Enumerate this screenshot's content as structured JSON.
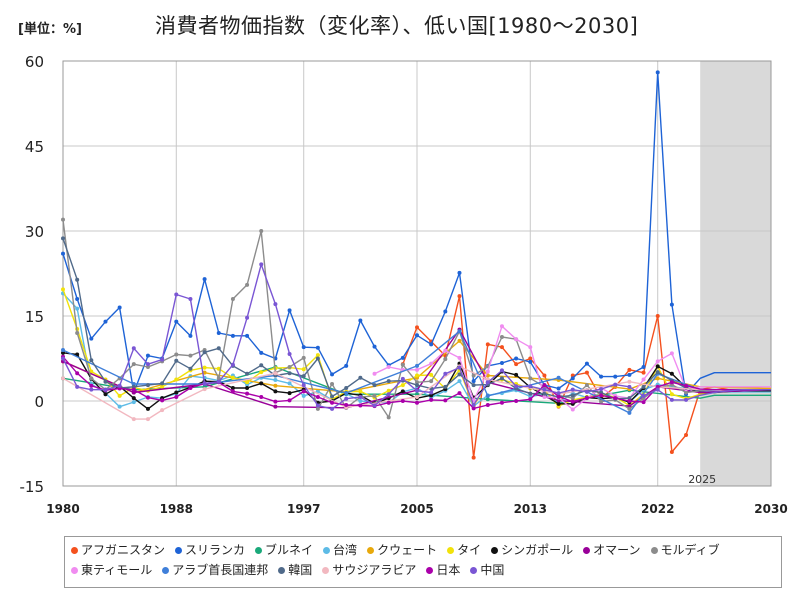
{
  "unit_label": "[単位：%]",
  "title": "消費者物価指数（変化率）、低い国[1980～2030]",
  "chart_data": {
    "type": "line",
    "title": "消費者物価指数（変化率）、低い国[1980～2030]",
    "xlabel": "",
    "ylabel": "",
    "xlim": [
      1980,
      2030
    ],
    "ylim": [
      -15,
      60
    ],
    "y_ticks": [
      -15,
      0,
      15,
      30,
      45,
      60
    ],
    "x_ticks": [
      1980,
      1988,
      1997,
      2005,
      2013,
      2022,
      2030
    ],
    "forecast_start": 2025,
    "forecast_label": "2025",
    "grid": true,
    "legend_position": "bottom",
    "series": [
      {
        "name": "アフガニスタン",
        "color": "#f4511e",
        "x": [
          2004,
          2005,
          2006,
          2007,
          2008,
          2009,
          2010,
          2011,
          2012,
          2013,
          2014,
          2015,
          2016,
          2017,
          2018,
          2019,
          2020,
          2021,
          2022,
          2023,
          2024,
          2025,
          2026,
          2027,
          2028,
          2029,
          2030
        ],
        "values": [
          6.5,
          13,
          10.5,
          8,
          18.5,
          -10,
          10,
          9.5,
          6.5,
          7.5,
          4.5,
          -1,
          4.5,
          5,
          0.5,
          2.5,
          5.5,
          5,
          15,
          -9,
          -6,
          2,
          2.5,
          2,
          2,
          2,
          2
        ]
      },
      {
        "name": "スリランカ",
        "color": "#1e63d6",
        "x": [
          1980,
          1981,
          1982,
          1983,
          1984,
          1985,
          1986,
          1987,
          1988,
          1989,
          1990,
          1991,
          1992,
          1993,
          1994,
          1995,
          1996,
          1997,
          1998,
          1999,
          2000,
          2001,
          2002,
          2003,
          2004,
          2005,
          2006,
          2007,
          2008,
          2009,
          2010,
          2011,
          2012,
          2013,
          2014,
          2015,
          2016,
          2017,
          2018,
          2019,
          2020,
          2021,
          2022,
          2023,
          2024,
          2025,
          2026,
          2027,
          2028,
          2029,
          2030
        ],
        "values": [
          26,
          18,
          11,
          14,
          16.5,
          1.5,
          8,
          7.5,
          14,
          11.5,
          21.5,
          12,
          11.5,
          11.5,
          8.5,
          7.5,
          16,
          9.5,
          9.4,
          4.7,
          6.2,
          14.2,
          9.6,
          6.3,
          7.6,
          11.6,
          10,
          15.8,
          22.6,
          3.5,
          6.2,
          6.7,
          7.5,
          6.9,
          2.8,
          2.2,
          4,
          6.6,
          4.3,
          4.3,
          4.6,
          6,
          58,
          17,
          1.2,
          4,
          5,
          5,
          5,
          5,
          5
        ]
      },
      {
        "name": "ブルネイ",
        "color": "#1aa97a",
        "x": [
          1980,
          1985,
          1990,
          1995,
          2000,
          2005,
          2010,
          2015,
          2020,
          2025,
          2026,
          2027,
          2028,
          2029,
          2030
        ],
        "values": [
          4,
          2,
          2.5,
          6,
          1.2,
          1.2,
          0.3,
          -0.4,
          1.9,
          0.5,
          1,
          1,
          1,
          1,
          1
        ]
      },
      {
        "name": "台湾",
        "color": "#5dbbe6",
        "x": [
          1980,
          1981,
          1982,
          1983,
          1984,
          1985,
          1986,
          1987,
          1988,
          1989,
          1990,
          1991,
          1992,
          1993,
          1994,
          1995,
          1996,
          1997,
          1998,
          1999,
          2000,
          2001,
          2002,
          2003,
          2004,
          2005,
          2006,
          2007,
          2008,
          2009,
          2010,
          2011,
          2012,
          2013,
          2014,
          2015,
          2016,
          2017,
          2018,
          2019,
          2020,
          2021,
          2022,
          2023,
          2024,
          2025,
          2026,
          2027,
          2028,
          2029,
          2030
        ],
        "values": [
          19,
          16.3,
          3,
          1.4,
          -1,
          -0.2,
          0.7,
          0.5,
          1.3,
          4.4,
          4.1,
          3.6,
          4.5,
          2.9,
          4.1,
          3.7,
          3.1,
          0.9,
          1.7,
          0.2,
          1.3,
          0,
          -0.2,
          -0.3,
          1.6,
          2.3,
          0.6,
          1.8,
          3.5,
          -0.9,
          1,
          1.4,
          1.9,
          0.8,
          1.2,
          -0.3,
          1.4,
          0.6,
          1.3,
          0.6,
          -0.2,
          2,
          2.9,
          2.5,
          2.2,
          1.8,
          1.7,
          1.6,
          1.6,
          1.6,
          1.6
        ]
      },
      {
        "name": "クウェート",
        "color": "#e8a90c",
        "x": [
          1980,
          1985,
          1990,
          1995,
          2000,
          2005,
          2008,
          2010,
          2015,
          2020,
          2022,
          2025,
          2030
        ],
        "values": [
          7,
          1.5,
          5,
          2.7,
          1.6,
          4.1,
          10.6,
          4.5,
          3.7,
          2.1,
          4,
          2.5,
          2.2
        ]
      },
      {
        "name": "タイ",
        "color": "#f2e20a",
        "x": [
          1980,
          1981,
          1982,
          1983,
          1984,
          1985,
          1986,
          1987,
          1988,
          1989,
          1990,
          1991,
          1992,
          1993,
          1994,
          1995,
          1996,
          1997,
          1998,
          1999,
          2000,
          2001,
          2002,
          2003,
          2004,
          2005,
          2006,
          2007,
          2008,
          2009,
          2010,
          2011,
          2012,
          2013,
          2014,
          2015,
          2016,
          2017,
          2018,
          2019,
          2020,
          2021,
          2022,
          2023,
          2024,
          2025,
          2026,
          2027,
          2028,
          2029,
          2030
        ],
        "values": [
          19.7,
          12.7,
          5.2,
          3.8,
          0.9,
          2.4,
          1.8,
          2.5,
          3.8,
          5.4,
          5.9,
          5.7,
          4.1,
          3.3,
          5.1,
          5.8,
          5.9,
          5.6,
          8.1,
          0.3,
          1.6,
          1.7,
          0.6,
          1.8,
          2.8,
          4.5,
          4.6,
          2.2,
          5.5,
          -0.9,
          3.3,
          3.8,
          3,
          2.2,
          1.9,
          -0.9,
          0.2,
          0.7,
          1.1,
          0.7,
          -0.8,
          1.2,
          6.1,
          1.2,
          0.4,
          1.2,
          1.5,
          1.8,
          2,
          2,
          2
        ]
      },
      {
        "name": "シンガポール",
        "color": "#111111",
        "x": [
          1980,
          1981,
          1982,
          1983,
          1984,
          1985,
          1986,
          1987,
          1988,
          1989,
          1990,
          1991,
          1992,
          1993,
          1994,
          1995,
          1996,
          1997,
          1998,
          1999,
          2000,
          2001,
          2002,
          2003,
          2004,
          2005,
          2006,
          2007,
          2008,
          2009,
          2010,
          2011,
          2012,
          2013,
          2014,
          2015,
          2016,
          2017,
          2018,
          2019,
          2020,
          2021,
          2022,
          2023,
          2024,
          2025,
          2026,
          2027,
          2028,
          2029,
          2030
        ],
        "values": [
          8.5,
          8.2,
          3.9,
          1.2,
          2.6,
          0.5,
          -1.4,
          0.5,
          1.5,
          2.4,
          3.5,
          3.4,
          2.3,
          2.3,
          3.1,
          1.7,
          1.4,
          2,
          -0.3,
          0,
          1.4,
          1,
          -0.4,
          0.5,
          1.7,
          0.5,
          1,
          2.1,
          6.6,
          0.6,
          2.8,
          5.2,
          4.6,
          2.4,
          1,
          -0.5,
          -0.5,
          0.6,
          0.4,
          0.6,
          -0.2,
          2.3,
          6.1,
          4.8,
          2.4,
          1.5,
          1.5,
          1.7,
          1.8,
          1.8,
          1.8
        ]
      },
      {
        "name": "オマーン",
        "color": "#990099",
        "x": [
          1980,
          1985,
          1990,
          1995,
          2000,
          2005,
          2008,
          2010,
          2015,
          2020,
          2022,
          2025,
          2030
        ],
        "values": [
          7,
          1.5,
          3,
          -1,
          -1.2,
          1.9,
          12.6,
          3.3,
          0.1,
          -0.9,
          2.5,
          1.5,
          2
        ]
      },
      {
        "name": "モルディブ",
        "color": "#8c8c8c",
        "x": [
          1980,
          1981,
          1982,
          1983,
          1984,
          1985,
          1986,
          1987,
          1988,
          1989,
          1990,
          1991,
          1992,
          1993,
          1994,
          1995,
          1996,
          1997,
          1998,
          1999,
          2000,
          2001,
          2002,
          2003,
          2004,
          2005,
          2006,
          2007,
          2008,
          2009,
          2010,
          2011,
          2012,
          2013,
          2014,
          2015,
          2016,
          2017,
          2018,
          2019,
          2020,
          2021,
          2022,
          2023,
          2024,
          2025,
          2026,
          2027,
          2028,
          2029,
          2030
        ],
        "values": [
          32,
          12,
          4,
          2,
          4,
          6.5,
          6,
          7,
          8.2,
          8,
          9,
          4,
          18,
          20.5,
          30,
          5,
          6,
          7.6,
          -1.4,
          3,
          -1.2,
          0.7,
          0.9,
          -2.9,
          6.4,
          3.3,
          3.5,
          7.4,
          12.3,
          4.5,
          6.1,
          11.3,
          10.9,
          4,
          2.5,
          1,
          0.5,
          2.8,
          -0.1,
          0.2,
          -1.4,
          0.5,
          2.3,
          2.9,
          1.5,
          1.8,
          2,
          2,
          2,
          2,
          2
        ]
      },
      {
        "name": "東ティモール",
        "color": "#f08cf0",
        "x": [
          2002,
          2003,
          2004,
          2005,
          2006,
          2007,
          2008,
          2009,
          2010,
          2011,
          2012,
          2013,
          2014,
          2015,
          2016,
          2017,
          2018,
          2019,
          2020,
          2021,
          2022,
          2023,
          2024,
          2025,
          2026,
          2027,
          2028,
          2029,
          2030
        ],
        "values": [
          4.8,
          6,
          5.5,
          5.5,
          6.6,
          8.9,
          7.6,
          0.1,
          5.2,
          13.2,
          10.9,
          9.5,
          0.7,
          0.6,
          -1.5,
          0.5,
          2.3,
          0.9,
          0.5,
          3.8,
          7,
          8.4,
          2.1,
          2.5,
          2.5,
          2.5,
          2.5,
          2.5,
          2.5
        ]
      },
      {
        "name": "アラブ首長国連邦",
        "color": "#3f7fd9",
        "x": [
          1980,
          1985,
          1990,
          1995,
          2000,
          2005,
          2008,
          2010,
          2015,
          2020,
          2022,
          2025,
          2030
        ],
        "values": [
          9,
          3,
          3,
          4.5,
          1.4,
          6.2,
          12.3,
          0.9,
          4.1,
          -2.1,
          4.8,
          2,
          2
        ]
      },
      {
        "name": "韓国",
        "color": "#506a8a",
        "x": [
          1980,
          1981,
          1982,
          1983,
          1984,
          1985,
          1986,
          1987,
          1988,
          1989,
          1990,
          1991,
          1992,
          1993,
          1994,
          1995,
          1996,
          1997,
          1998,
          1999,
          2000,
          2001,
          2002,
          2003,
          2004,
          2005,
          2006,
          2007,
          2008,
          2009,
          2010,
          2011,
          2012,
          2013,
          2014,
          2015,
          2016,
          2017,
          2018,
          2019,
          2020,
          2021,
          2022,
          2023,
          2024,
          2025,
          2026,
          2027,
          2028,
          2029,
          2030
        ],
        "values": [
          28.7,
          21.4,
          7.2,
          3.4,
          2.3,
          2.5,
          2.8,
          3.1,
          7.1,
          5.7,
          8.6,
          9.3,
          6.2,
          4.8,
          6.3,
          4.5,
          4.9,
          4.4,
          7.5,
          0.8,
          2.3,
          4.1,
          2.8,
          3.5,
          3.6,
          2.8,
          2.2,
          2.5,
          4.7,
          2.8,
          2.9,
          4,
          2.2,
          1.3,
          1.3,
          0.7,
          1,
          1.9,
          1.5,
          0.4,
          0.5,
          2.5,
          5.1,
          3.6,
          2.3,
          1.8,
          2,
          2,
          2,
          2,
          2
        ]
      },
      {
        "name": "サウジアラビア",
        "color": "#f2b8c0",
        "x": [
          1980,
          1985,
          1986,
          1987,
          1990,
          1995,
          2000,
          2005,
          2008,
          2010,
          2015,
          2020,
          2022,
          2025,
          2030
        ],
        "values": [
          4,
          -3.2,
          -3.2,
          -1.6,
          2.1,
          4.9,
          -1.1,
          0.7,
          6.1,
          3.8,
          1.2,
          3.4,
          2.5,
          2,
          2
        ]
      },
      {
        "name": "日本",
        "color": "#aa00aa",
        "x": [
          1980,
          1981,
          1982,
          1983,
          1984,
          1985,
          1986,
          1987,
          1988,
          1989,
          1990,
          1991,
          1992,
          1993,
          1994,
          1995,
          1996,
          1997,
          1998,
          1999,
          2000,
          2001,
          2002,
          2003,
          2004,
          2005,
          2006,
          2007,
          2008,
          2009,
          2010,
          2011,
          2012,
          2013,
          2014,
          2015,
          2016,
          2017,
          2018,
          2019,
          2020,
          2021,
          2022,
          2023,
          2024,
          2025,
          2026,
          2027,
          2028,
          2029,
          2030
        ],
        "values": [
          7.8,
          4.9,
          2.7,
          1.9,
          2.2,
          2,
          0.6,
          0.1,
          0.7,
          2.3,
          3.1,
          3.3,
          1.7,
          1.3,
          0.7,
          -0.1,
          0.1,
          1.7,
          0.7,
          -0.3,
          -0.7,
          -0.8,
          -0.9,
          -0.3,
          0,
          -0.3,
          0.2,
          0.1,
          1.4,
          -1.3,
          -0.7,
          -0.3,
          0,
          0.3,
          2.8,
          0.8,
          -0.1,
          0.5,
          1,
          0.5,
          0,
          -0.2,
          2.5,
          3.3,
          2.7,
          2.1,
          2,
          2,
          2,
          2,
          2
        ]
      },
      {
        "name": "中国",
        "color": "#7a56d4",
        "x": [
          1980,
          1981,
          1982,
          1983,
          1984,
          1985,
          1986,
          1987,
          1988,
          1989,
          1990,
          1991,
          1992,
          1993,
          1994,
          1995,
          1996,
          1997,
          1998,
          1999,
          2000,
          2001,
          2002,
          2003,
          2004,
          2005,
          2006,
          2007,
          2008,
          2009,
          2010,
          2011,
          2012,
          2013,
          2014,
          2015,
          2016,
          2017,
          2018,
          2019,
          2020,
          2021,
          2022,
          2023,
          2024,
          2025,
          2026,
          2027,
          2028,
          2029,
          2030
        ],
        "values": [
          7.5,
          2.5,
          2,
          2,
          2.7,
          9.3,
          6.5,
          7.3,
          18.8,
          18,
          3.1,
          3.4,
          6.4,
          14.7,
          24.1,
          17.1,
          8.3,
          2.8,
          -0.8,
          -1.4,
          0.4,
          0.7,
          -0.8,
          1.2,
          3.9,
          1.8,
          1.5,
          4.8,
          5.9,
          -0.7,
          3.3,
          5.4,
          2.6,
          2.6,
          2,
          1.4,
          2,
          1.6,
          2.1,
          2.9,
          2.5,
          0.9,
          2,
          0.2,
          0.2,
          1,
          1.5,
          1.8,
          2,
          2,
          2
        ]
      }
    ]
  }
}
